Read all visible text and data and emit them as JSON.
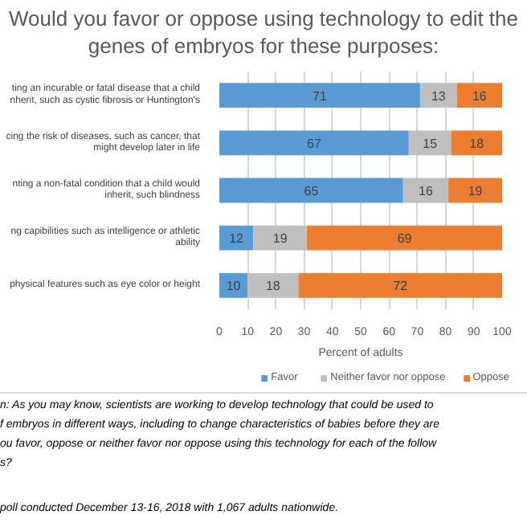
{
  "chart_data": {
    "type": "bar",
    "orientation": "horizontal",
    "stacked": true,
    "data_labels": true,
    "grid": "x",
    "legend": "bottom",
    "title": "Would you favor or oppose using technology to edit the\ngenes of embryos for these purposes:",
    "xlabel": "Percent of adults",
    "categories": [
      "ting an incurable or fatal disease that a child\nnherit, such as cystic fibrosis or Huntington's",
      "cing the risk of diseases, such as cancer, that\nmight develop later in life",
      "nting a non-fatal condition that a child would\ninherit, such blindness",
      "ng capibilities such as intelligence or athletic\nability",
      "physical features such as eye color or height"
    ],
    "xlim": [
      0,
      100
    ],
    "xticks": [
      0,
      10,
      20,
      30,
      40,
      50,
      60,
      70,
      80,
      90,
      100
    ],
    "series": [
      {
        "name": "Favor",
        "color": "#5b9bd5",
        "values": [
          71,
          67,
          65,
          12,
          10
        ]
      },
      {
        "name": "Neither favor nor oppose",
        "color": "#bfbfbf",
        "values": [
          13,
          15,
          16,
          19,
          18
        ]
      },
      {
        "name": "Oppose",
        "color": "#ed7d31",
        "values": [
          16,
          18,
          19,
          69,
          72
        ]
      }
    ],
    "annotations": [
      "n: As you may know, scientists are working to develop technology that could be used to\nf embryos in different ways, including to change characteristics of babies before they are\nou favor, oppose or neither favor nor oppose using this technology for each of the follow\ns?",
      "poll conducted December 13-16, 2018 with 1,067 adults nationwide."
    ]
  }
}
